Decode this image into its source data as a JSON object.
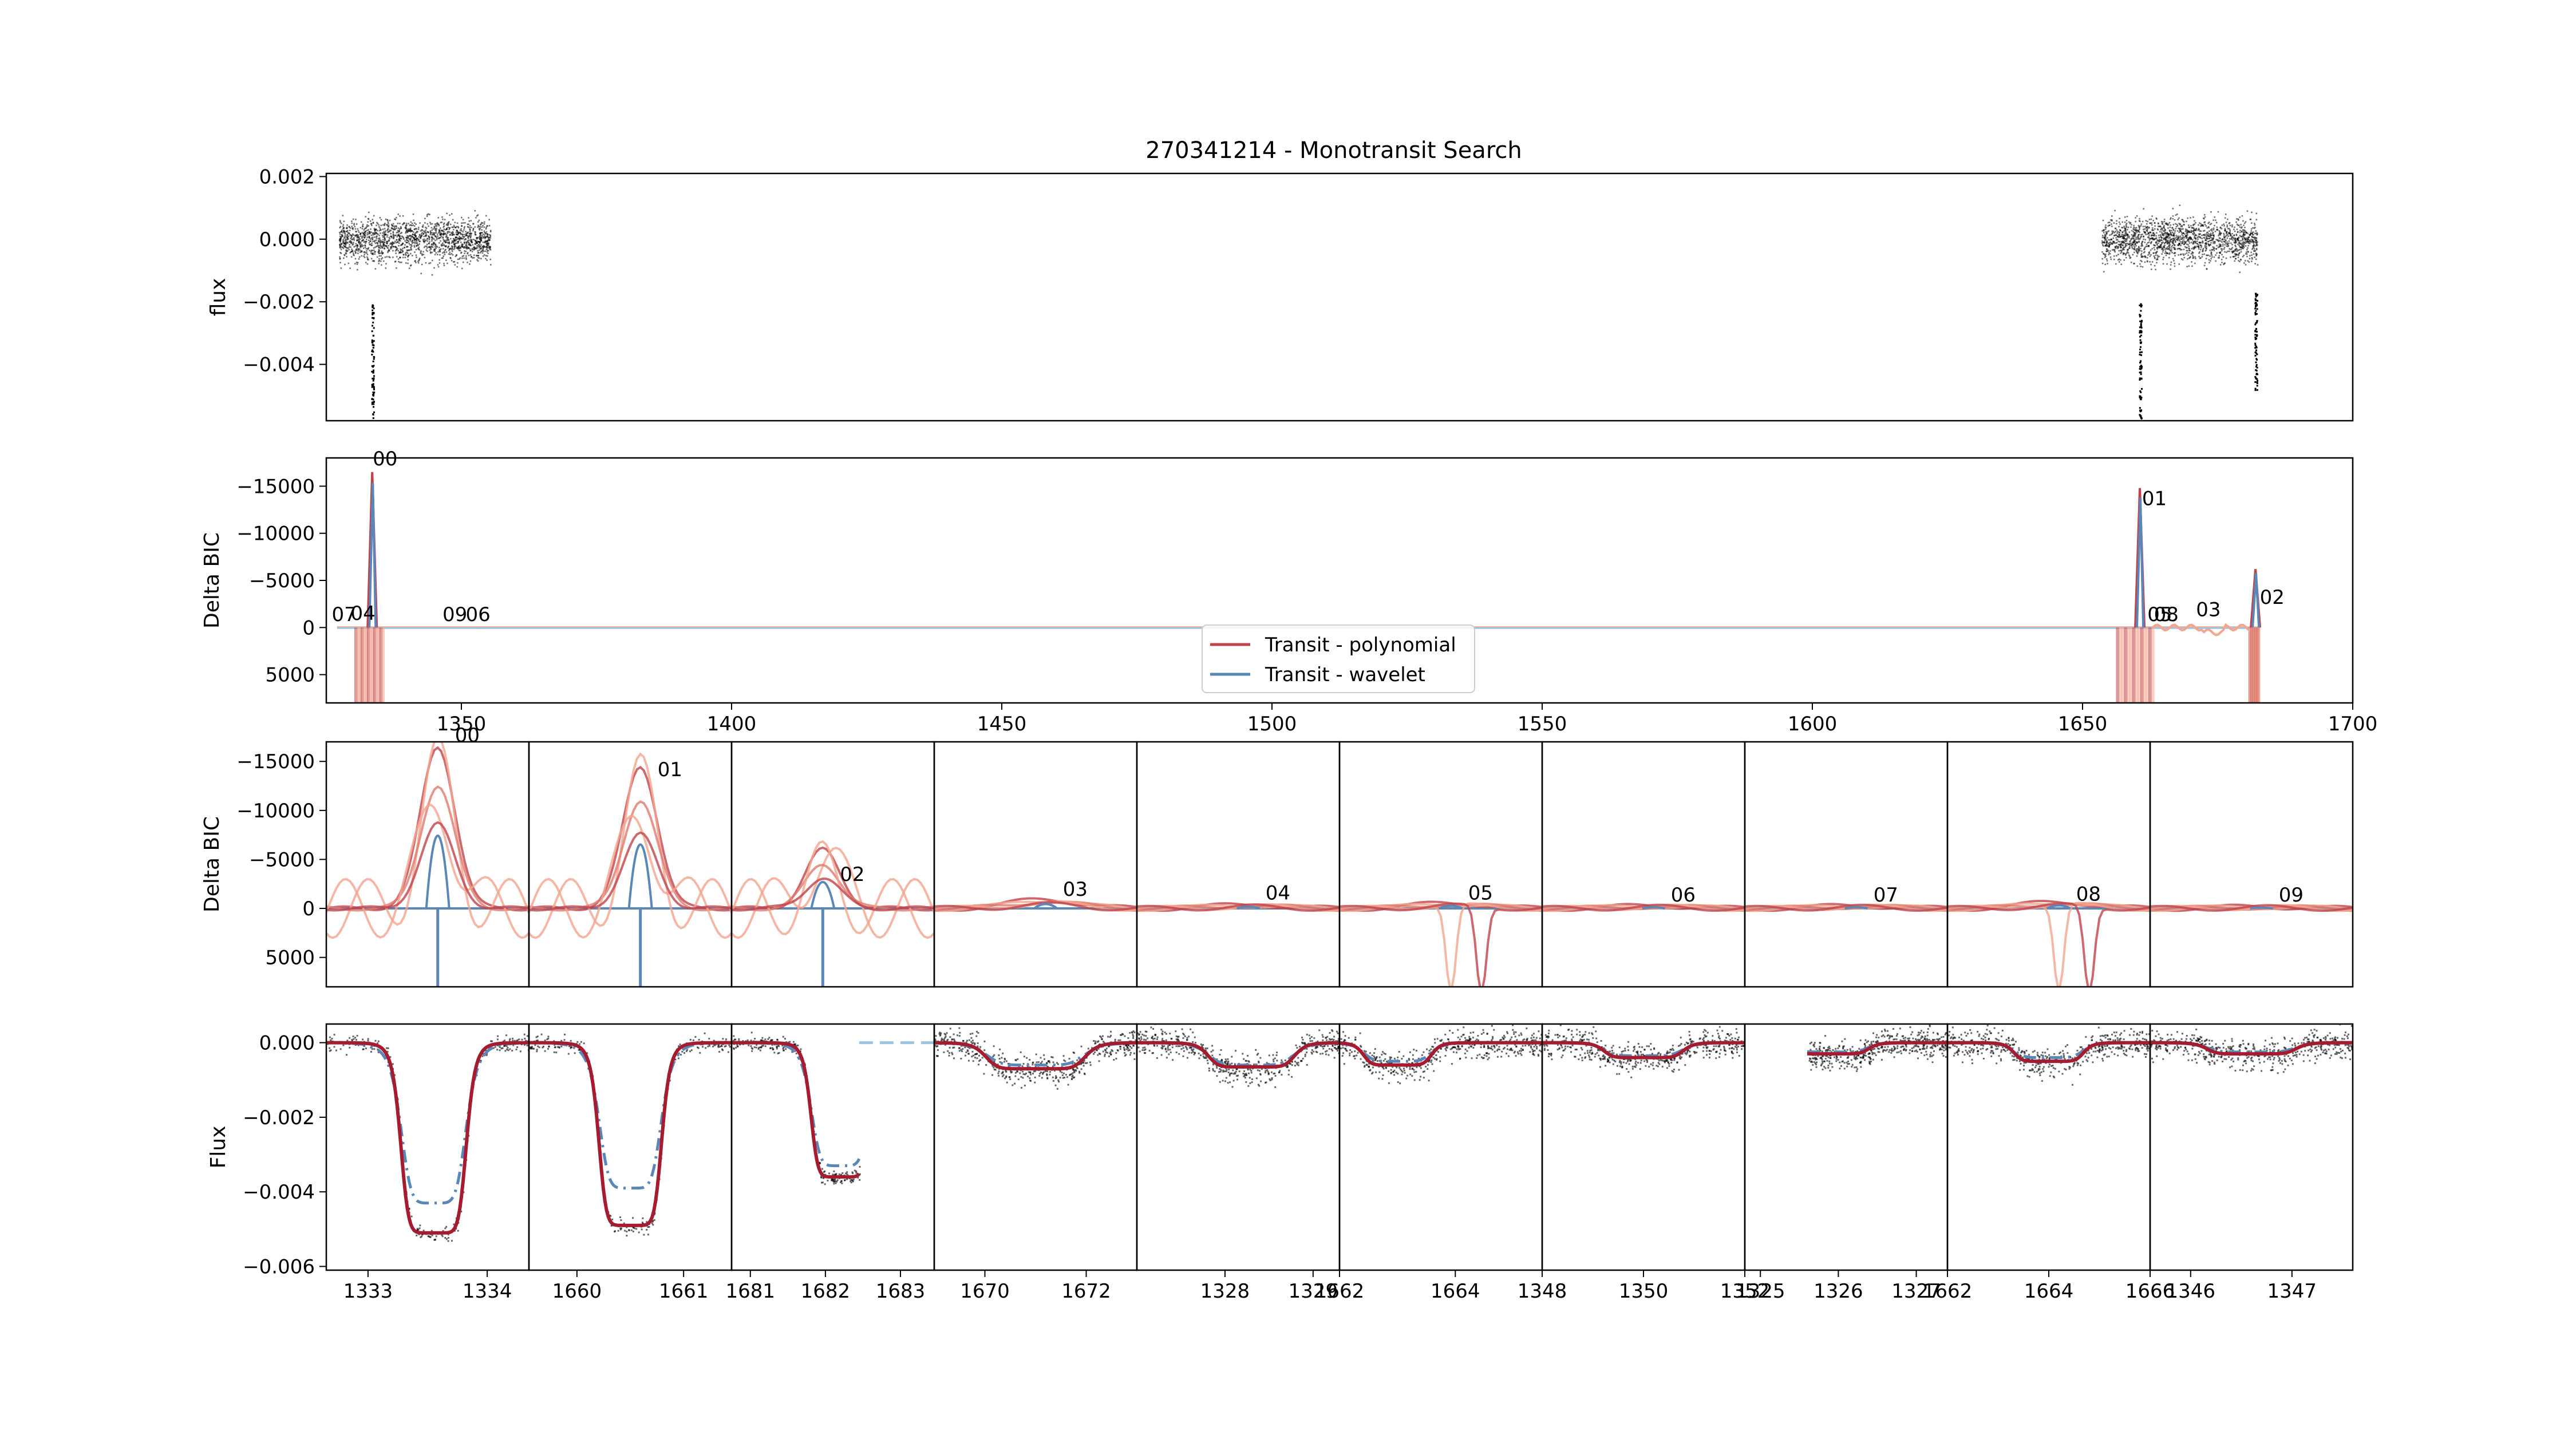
{
  "title": "270341214 - Monotransit Search",
  "colors": {
    "poly": "#c0424a",
    "wave": "#5b86b8",
    "poly_light": "#f2a58f",
    "wave_light": "#9cc3e0",
    "points": "#000000"
  },
  "chart_data": [
    {
      "id": "flux-overview",
      "type": "scatter",
      "ylabel": "flux",
      "xlim": [
        1325,
        1700
      ],
      "ylim": [
        -0.0058,
        0.0021
      ],
      "yticks": [
        0.002,
        0.0,
        -0.002,
        -0.004
      ],
      "ytick_labels": [
        "0.002",
        "0.000",
        "−0.002",
        "−0.004"
      ],
      "segments": [
        {
          "x_start": 1341.8,
          "x_end": 1352.2,
          "center": 0.0,
          "spread": 0.0009
        },
        {
          "x_start": 1638.5,
          "x_end": 1650.5,
          "center": 0.0,
          "spread": 0.0009
        }
      ],
      "dips": [
        {
          "x": 1333.5,
          "depth": -0.0058
        },
        {
          "x": 1660.6,
          "depth": -0.0058
        },
        {
          "x": 1682.0,
          "depth": -0.0048
        }
      ]
    },
    {
      "id": "delta-bic-overview",
      "type": "line",
      "ylabel": "Delta BIC",
      "xlim": [
        1325,
        1700
      ],
      "ylim": [
        8000,
        -18000
      ],
      "yticks": [
        -15000,
        -10000,
        -5000,
        0,
        5000
      ],
      "ytick_labels": [
        "−15000",
        "−10000",
        "−5000",
        "0",
        "5000"
      ],
      "xticks": [
        1350,
        1400,
        1450,
        1500,
        1550,
        1600,
        1650,
        1700
      ],
      "xtick_labels": [
        "1350",
        "1400",
        "1450",
        "1500",
        "1550",
        "1600",
        "1650",
        "1700"
      ],
      "legend": {
        "placement": "lower-center",
        "entries": [
          "Transit - polynomial",
          "Transit - wavelet"
        ]
      },
      "peaks": [
        {
          "label": "00",
          "x": 1333.5,
          "value": -16500
        },
        {
          "label": "01",
          "x": 1660.6,
          "value": -14800
        },
        {
          "label": "02",
          "x": 1682.0,
          "value": -6200
        }
      ],
      "annotations": [
        {
          "label": "00",
          "x": 1333.6,
          "y": -17200
        },
        {
          "label": "07",
          "x": 1326.0,
          "y": -700
        },
        {
          "label": "04",
          "x": 1329.5,
          "y": -800
        },
        {
          "label": "09",
          "x": 1346.5,
          "y": -700
        },
        {
          "label": "06",
          "x": 1350.8,
          "y": -700
        },
        {
          "label": "01",
          "x": 1661.0,
          "y": -13000
        },
        {
          "label": "05",
          "x": 1662.0,
          "y": -700
        },
        {
          "label": "08",
          "x": 1663.2,
          "y": -700
        },
        {
          "label": "03",
          "x": 1671.0,
          "y": -1200
        },
        {
          "label": "02",
          "x": 1682.8,
          "y": -2500
        }
      ]
    },
    {
      "id": "delta-bic-zoom",
      "type": "line",
      "ylabel": "Delta BIC",
      "ylim": [
        8000,
        -17000
      ],
      "yticks": [
        -15000,
        -10000,
        -5000,
        0,
        5000
      ],
      "ytick_labels": [
        "−15000",
        "−10000",
        "−5000",
        "0",
        "5000"
      ],
      "panels": [
        {
          "label": "00",
          "peak": -16500,
          "label_y": -17000
        },
        {
          "label": "01",
          "peak": -14500,
          "label_y": -13500
        },
        {
          "label": "02",
          "peak": -6000,
          "label_y": -2800
        },
        {
          "label": "03",
          "peak": -1000,
          "label_y": -1300
        },
        {
          "label": "04",
          "peak": -400,
          "label_y": -900
        },
        {
          "label": "05",
          "peak": -600,
          "label_y": -900
        },
        {
          "label": "06",
          "peak": -300,
          "label_y": -700
        },
        {
          "label": "07",
          "peak": -300,
          "label_y": -700
        },
        {
          "label": "08",
          "peak": -700,
          "label_y": -800
        },
        {
          "label": "09",
          "peak": -200,
          "label_y": -700
        }
      ]
    },
    {
      "id": "flux-zoom",
      "type": "scatter",
      "ylabel": "Flux",
      "ylim": [
        -0.0061,
        0.0005
      ],
      "yticks": [
        0.0,
        -0.002,
        -0.004,
        -0.006
      ],
      "ytick_labels": [
        "0.000",
        "−0.002",
        "−0.004",
        "−0.006"
      ],
      "panels": [
        {
          "label": "00",
          "xlim": [
            1332.65,
            1334.35
          ],
          "xticks": [
            1333,
            1334
          ],
          "xtick_labels": [
            "1333",
            "1334"
          ],
          "t0": 1333.55,
          "depth": -0.0051,
          "wave_depth": -0.0043,
          "width": 0.28
        },
        {
          "label": "01",
          "xlim": [
            1659.55,
            1661.45
          ],
          "xticks": [
            1660,
            1661
          ],
          "xtick_labels": [
            "1660",
            "1661"
          ],
          "t0": 1660.5,
          "depth": -0.0049,
          "wave_depth": -0.0039,
          "width": 0.3
        },
        {
          "label": "02",
          "xlim": [
            1680.75,
            1683.45
          ],
          "xticks": [
            1681,
            1682,
            1683
          ],
          "xtick_labels": [
            "1681",
            "1682",
            "1683"
          ],
          "t0": 1682.2,
          "depth": -0.0036,
          "wave_depth": -0.0033,
          "width": 0.4,
          "data_end": 1682.45
        },
        {
          "label": "03",
          "xlim": [
            1669.0,
            1673.0
          ],
          "xticks": [
            1670,
            1672
          ],
          "xtick_labels": [
            "1670",
            "1672"
          ],
          "t0": 1671.0,
          "depth": -0.0007,
          "wave_depth": -0.0006,
          "width": 1.0
        },
        {
          "label": "04",
          "xlim": [
            1327.0,
            1329.3
          ],
          "xticks": [
            1328,
            1329
          ],
          "xtick_labels": [
            "1328",
            "1329"
          ],
          "t0": 1328.3,
          "depth": -0.00065,
          "wave_depth": -0.0006,
          "width": 0.5
        },
        {
          "label": "05",
          "xlim": [
            1662.0,
            1665.5
          ],
          "xticks": [
            1662,
            1664
          ],
          "xtick_labels": [
            "1662",
            "1664"
          ],
          "t0": 1663.0,
          "depth": -0.0006,
          "wave_depth": -0.0005,
          "width": 0.6
        },
        {
          "label": "06",
          "xlim": [
            1348.0,
            1352.0
          ],
          "xticks": [
            1348,
            1350,
            1352
          ],
          "xtick_labels": [
            "1348",
            "1350",
            "1352"
          ],
          "t0": 1350.0,
          "depth": -0.0004,
          "wave_depth": -0.00035,
          "width": 0.8
        },
        {
          "label": "07",
          "xlim": [
            1324.8,
            1327.4
          ],
          "xticks": [
            1325,
            1326,
            1327
          ],
          "xtick_labels": [
            "1325",
            "1326",
            "1327"
          ],
          "t0": 1325.9,
          "depth": -0.0003,
          "wave_depth": -0.00025,
          "width": 0.5,
          "data_start": 1325.6
        },
        {
          "label": "08",
          "xlim": [
            1662.0,
            1666.0
          ],
          "xticks": [
            1662,
            1664,
            1666
          ],
          "xtick_labels": [
            "1662",
            "1664",
            "1666"
          ],
          "t0": 1664.0,
          "depth": -0.0005,
          "wave_depth": -0.0004,
          "width": 0.7
        },
        {
          "label": "09",
          "xlim": [
            1345.6,
            1347.6
          ],
          "xticks": [
            1346,
            1347
          ],
          "xtick_labels": [
            "1346",
            "1347"
          ],
          "t0": 1346.6,
          "depth": -0.0003,
          "wave_depth": -0.00025,
          "width": 0.45
        }
      ]
    }
  ]
}
